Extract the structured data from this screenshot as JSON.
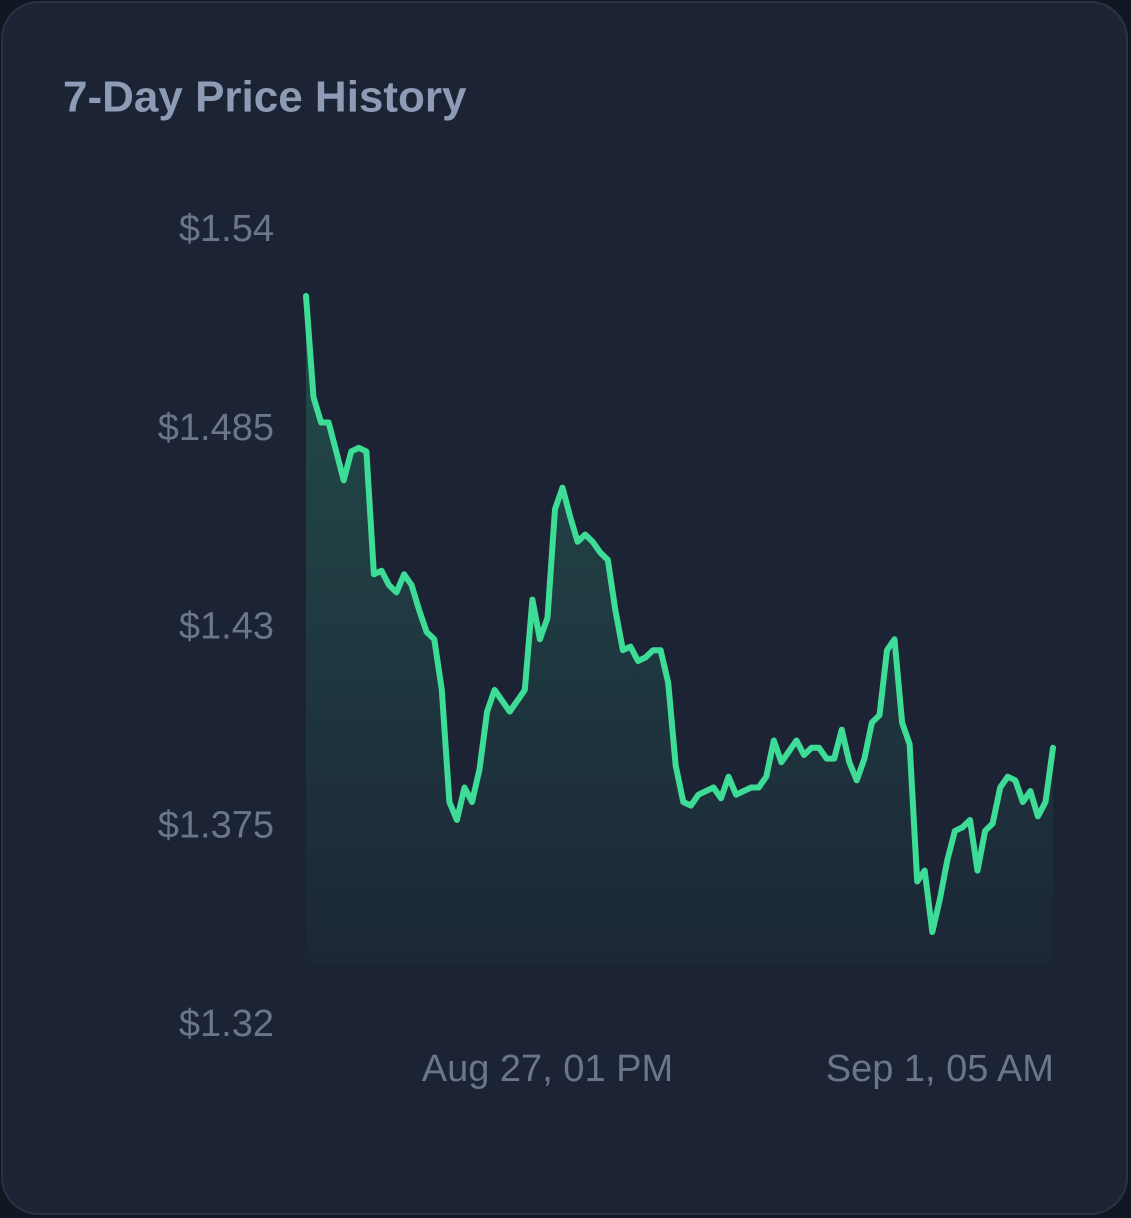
{
  "chart_data": {
    "type": "line",
    "title": "7-Day Price History",
    "categories": [
      null,
      null,
      null,
      null,
      null,
      null,
      null,
      null,
      null,
      null,
      null,
      null,
      null,
      null,
      null,
      null,
      null,
      null,
      null,
      null,
      null,
      null,
      null,
      null,
      null,
      null,
      null,
      null,
      null,
      null,
      null,
      null,
      "Aug 27, 01 PM",
      null,
      null,
      null,
      null,
      null,
      null,
      null,
      null,
      null,
      null,
      null,
      null,
      null,
      null,
      null,
      null,
      null,
      null,
      null,
      null,
      null,
      null,
      null,
      null,
      null,
      null,
      null,
      null,
      null,
      null,
      null,
      null,
      null,
      null,
      null,
      null,
      null,
      null,
      null,
      null,
      null,
      null,
      null,
      null,
      null,
      null,
      null,
      null,
      null,
      null,
      null,
      "Sep 1, 05 AM",
      null,
      null,
      null,
      null,
      null,
      null,
      null,
      null,
      null,
      null,
      null,
      null,
      null,
      null,
      null
    ],
    "values": [
      1.522,
      1.494,
      1.487,
      1.487,
      1.479,
      1.471,
      1.479,
      1.48,
      1.479,
      1.445,
      1.446,
      1.442,
      1.44,
      1.445,
      1.442,
      1.435,
      1.429,
      1.427,
      1.413,
      1.382,
      1.377,
      1.386,
      1.382,
      1.391,
      1.407,
      1.413,
      1.41,
      1.407,
      1.41,
      1.413,
      1.438,
      1.427,
      1.433,
      1.463,
      1.469,
      1.461,
      1.454,
      1.456,
      1.454,
      1.451,
      1.449,
      1.435,
      1.424,
      1.425,
      1.421,
      1.422,
      1.424,
      1.424,
      1.415,
      1.392,
      1.382,
      1.381,
      1.384,
      1.385,
      1.386,
      1.383,
      1.389,
      1.384,
      1.385,
      1.386,
      1.386,
      1.389,
      1.399,
      1.393,
      1.396,
      1.399,
      1.395,
      1.397,
      1.397,
      1.394,
      1.394,
      1.402,
      1.393,
      1.388,
      1.394,
      1.404,
      1.406,
      1.424,
      1.427,
      1.404,
      1.398,
      1.36,
      1.363,
      1.346,
      1.355,
      1.366,
      1.374,
      1.375,
      1.377,
      1.363,
      1.374,
      1.376,
      1.386,
      1.389,
      1.388,
      1.382,
      1.385,
      1.378,
      1.382,
      1.397
    ],
    "color": "#3ddc97",
    "ylim": [
      1.32,
      1.54
    ],
    "yticks": [
      {
        "value": 1.54,
        "label": "$1.54"
      },
      {
        "value": 1.485,
        "label": "$1.485"
      },
      {
        "value": 1.43,
        "label": "$1.43"
      },
      {
        "value": 1.375,
        "label": "$1.375"
      },
      {
        "value": 1.32,
        "label": "$1.32"
      }
    ],
    "grid": false
  }
}
